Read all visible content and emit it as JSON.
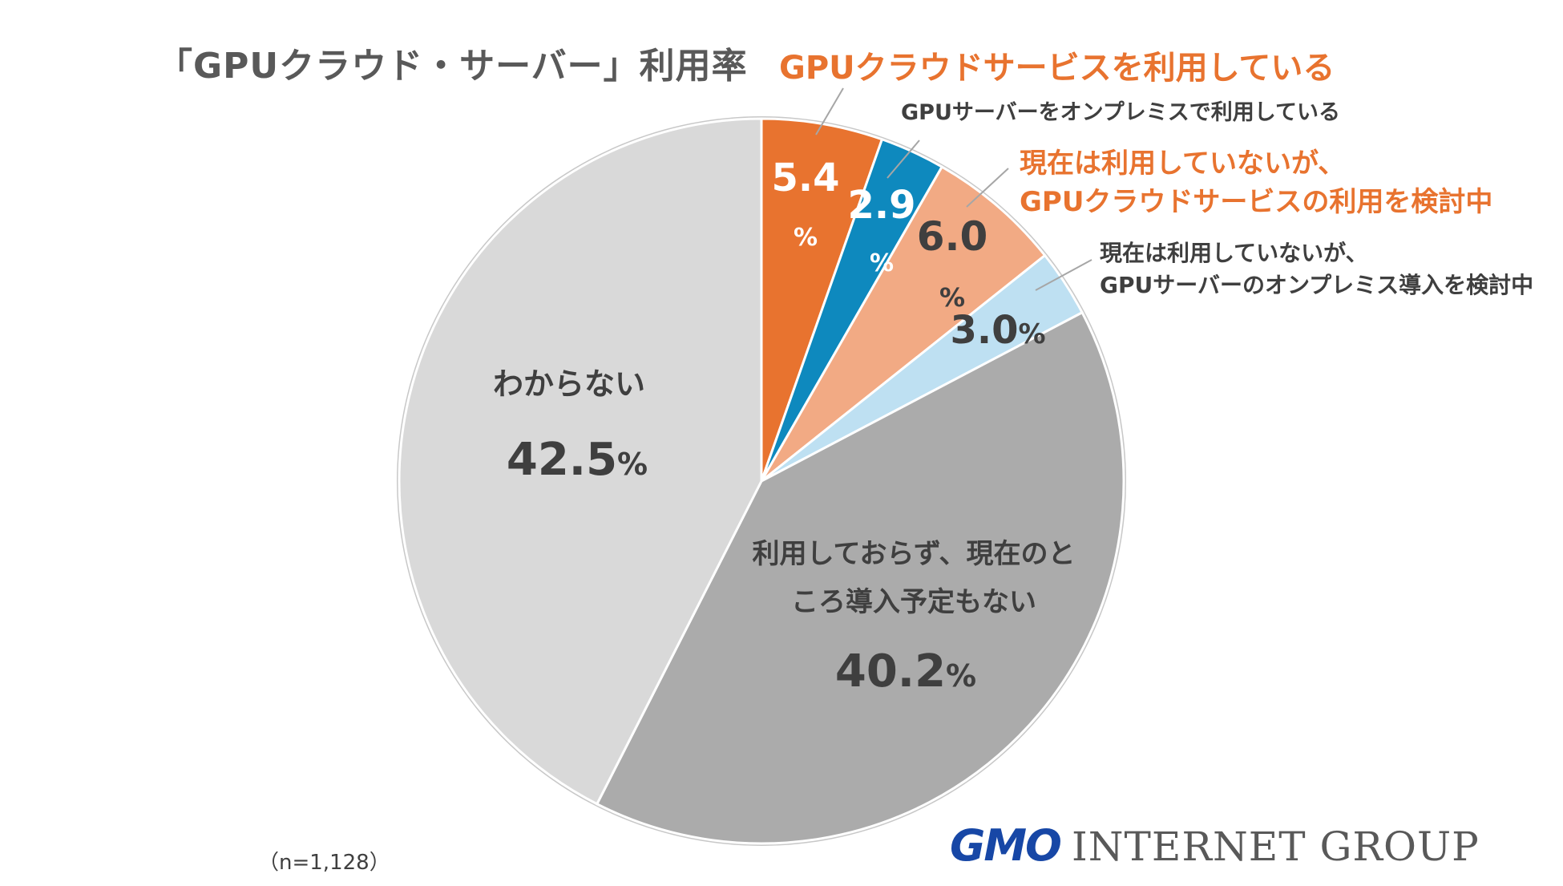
{
  "title": "「GPUクラウド・サーバー」利用率",
  "note": "（n=1,128）",
  "logo": {
    "brand": "GMO",
    "suffix": "INTERNET GROUP"
  },
  "chart_data": {
    "type": "pie",
    "title": "「GPUクラウド・サーバー」利用率",
    "n": 1128,
    "unit": "%",
    "start": "top",
    "direction": "clockwise",
    "slices": [
      {
        "name": "GPUクラウドサービスを利用している",
        "value": 5.4,
        "color": "#E8732F",
        "label": "5.4",
        "label_color": "#FFFFFF"
      },
      {
        "name": "GPUサーバーをオンプレミスで利用している",
        "value": 2.9,
        "color": "#0E89BE",
        "label": "2.9",
        "label_color": "#FFFFFF"
      },
      {
        "name": "現在は利用していないが、GPUクラウドサービスの利用を検討中",
        "value": 6.0,
        "color": "#F2AA84",
        "label": "6.0",
        "label_color": "#3F3F3F"
      },
      {
        "name": "現在は利用していないが、GPUサーバーのオンプレミス導入を検討中",
        "value": 3.0,
        "color": "#BEE0F2",
        "label": "3.0",
        "label_color": "#3F3F3F"
      },
      {
        "name": "利用しておらず、現在のところ導入予定もない",
        "value": 40.2,
        "color": "#ABABAB",
        "label": "40.2",
        "label_color": "#3F3F3F"
      },
      {
        "name": "わからない",
        "value": 42.5,
        "color": "#D9D9D9",
        "label": "42.5",
        "label_color": "#3F3F3F"
      }
    ],
    "callouts": [
      {
        "lines": [
          "GPUクラウドサービスを利用している"
        ],
        "color": "#E8732F"
      },
      {
        "lines": [
          "GPUサーバーをオンプレミスで利用している"
        ],
        "color": "#3F3F3F"
      },
      {
        "lines": [
          "現在は利用していないが、",
          "GPUクラウドサービスの利用を検討中"
        ],
        "color": "#E8732F"
      },
      {
        "lines": [
          "現在は利用していないが、",
          "GPUサーバーのオンプレミス導入を検討中"
        ],
        "color": "#3F3F3F"
      }
    ],
    "inner_labels": [
      {
        "lines": [
          "利用しておらず、現在のと",
          "ころ導入予定もない"
        ]
      },
      {
        "lines": [
          "わからない"
        ]
      }
    ]
  }
}
